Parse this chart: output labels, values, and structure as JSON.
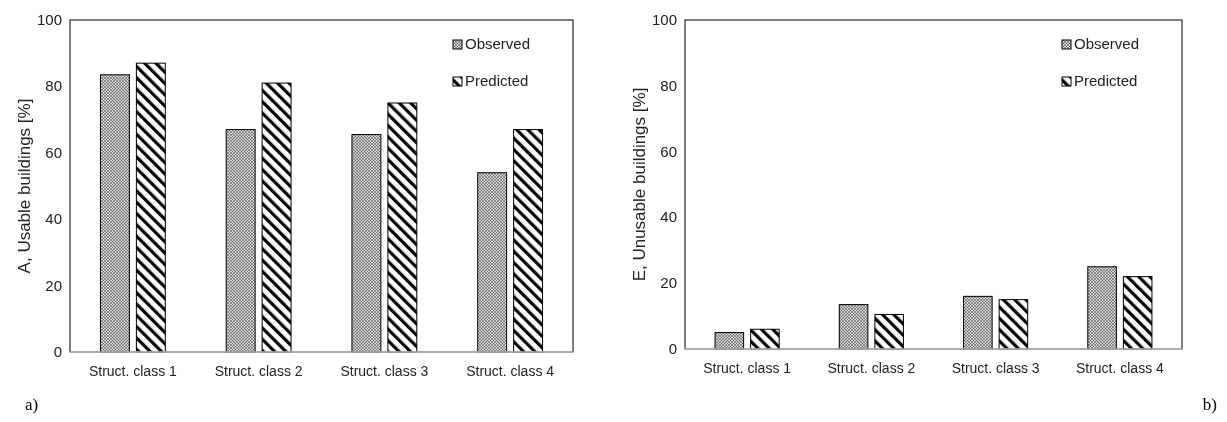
{
  "chart_data": [
    {
      "type": "bar",
      "ylabel": "A, Usable buildings [%]",
      "categories": [
        "Struct. class 1",
        "Struct. class 2",
        "Struct. class 3",
        "Struct. class 4"
      ],
      "series": [
        {
          "name": "Observed",
          "color": "#000000",
          "values": [
            83.5,
            67,
            65.5,
            54
          ]
        },
        {
          "name": "Predicted",
          "color": "#000000",
          "values": [
            87,
            81,
            75,
            67
          ]
        }
      ],
      "ylim": [
        0,
        100
      ],
      "yticks": [
        0,
        20,
        40,
        60,
        80,
        100
      ],
      "grid": false,
      "legend": "top right",
      "annotations": [
        "a)"
      ]
    },
    {
      "type": "bar",
      "ylabel": "E, Unusable buildings [%]",
      "categories": [
        "Struct. class 1",
        "Struct. class 2",
        "Struct. class 3",
        "Struct. class 4"
      ],
      "series": [
        {
          "name": "Observed",
          "color": "#000000",
          "values": [
            5,
            13.5,
            16,
            25
          ]
        },
        {
          "name": "Predicted",
          "color": "#000000",
          "values": [
            6,
            10.5,
            15,
            22
          ]
        }
      ],
      "ylim": [
        0,
        100
      ],
      "yticks": [
        0,
        20,
        40,
        60,
        80,
        100
      ],
      "grid": false,
      "legend": "top right",
      "annotations": [
        "b)"
      ]
    }
  ]
}
